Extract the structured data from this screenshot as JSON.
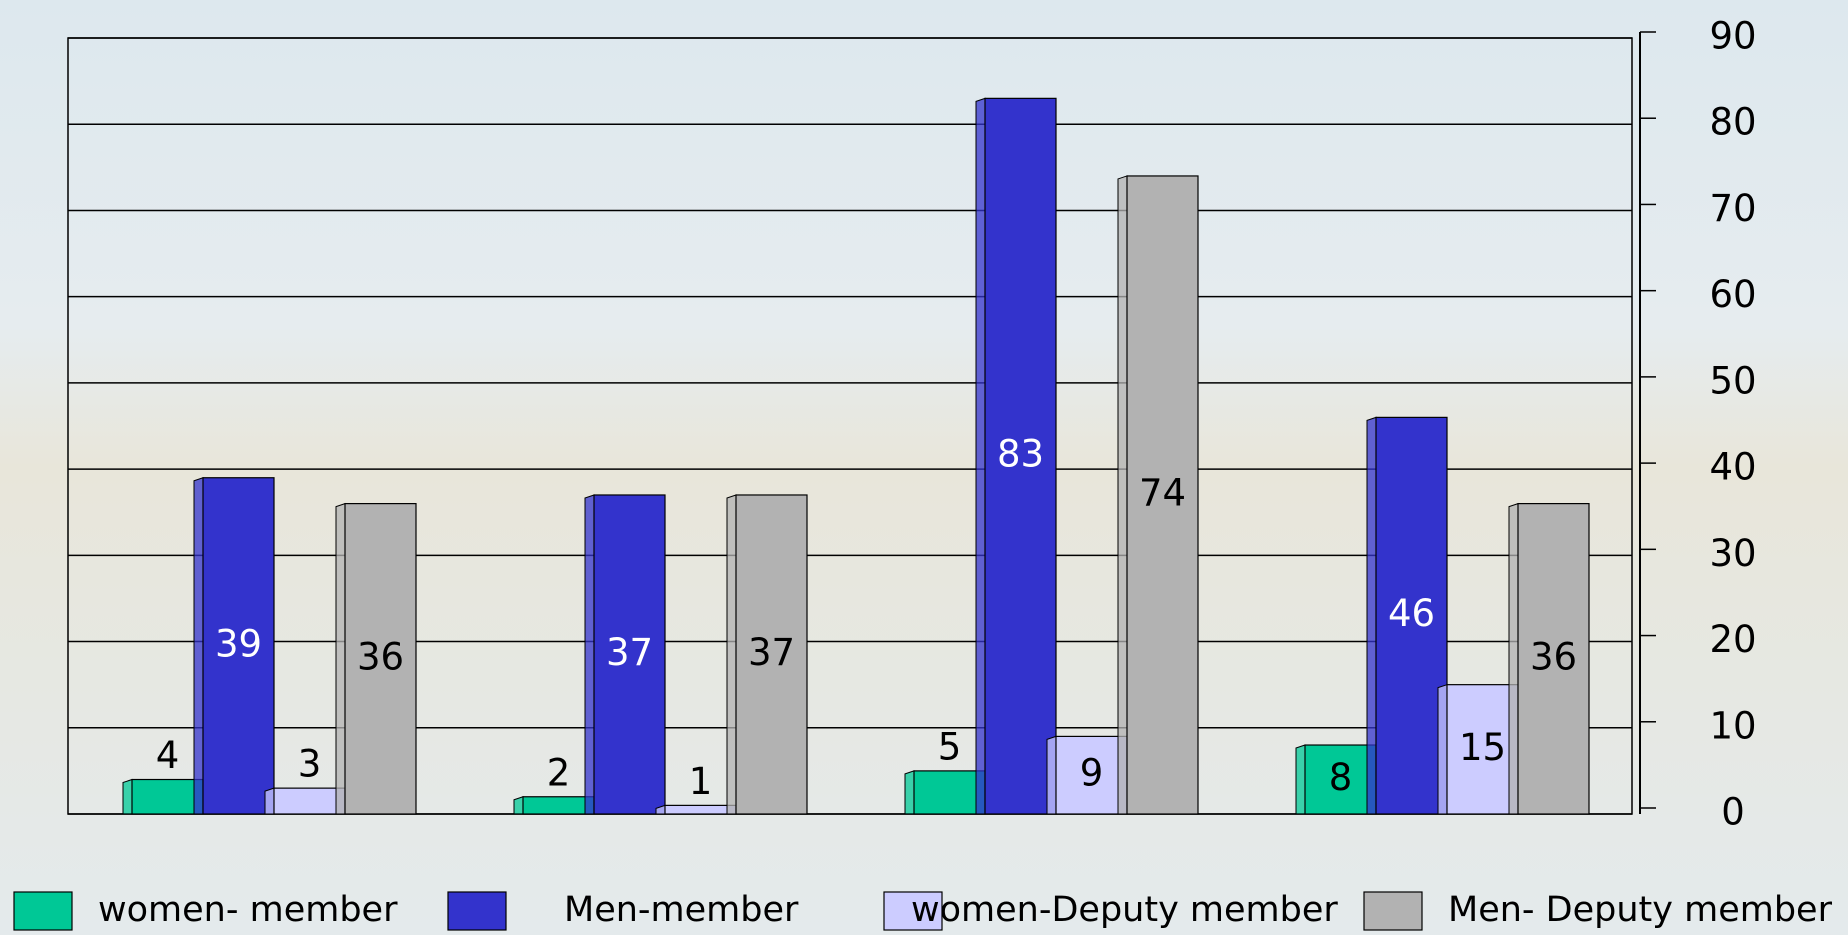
{
  "chart_data": {
    "type": "bar",
    "categories": [
      null,
      null,
      null,
      null
    ],
    "series": [
      {
        "name": "women- member",
        "color": "#00c896",
        "values": [
          4,
          2,
          5,
          8
        ]
      },
      {
        "name": "Men-member",
        "color": "#3333cc",
        "values": [
          39,
          37,
          83,
          46
        ]
      },
      {
        "name": "women-Deputy member",
        "color": "#ccccff",
        "values": [
          3,
          1,
          9,
          15
        ]
      },
      {
        "name": "Men- Deputy member",
        "color": "#b2b2b2",
        "values": [
          36,
          37,
          74,
          36
        ]
      }
    ],
    "ylim": [
      0,
      90
    ],
    "yticks": [
      0,
      10,
      20,
      30,
      40,
      50,
      60,
      70,
      80,
      90
    ],
    "y_axis_side": "right",
    "grid": true,
    "legend": "bottom"
  }
}
